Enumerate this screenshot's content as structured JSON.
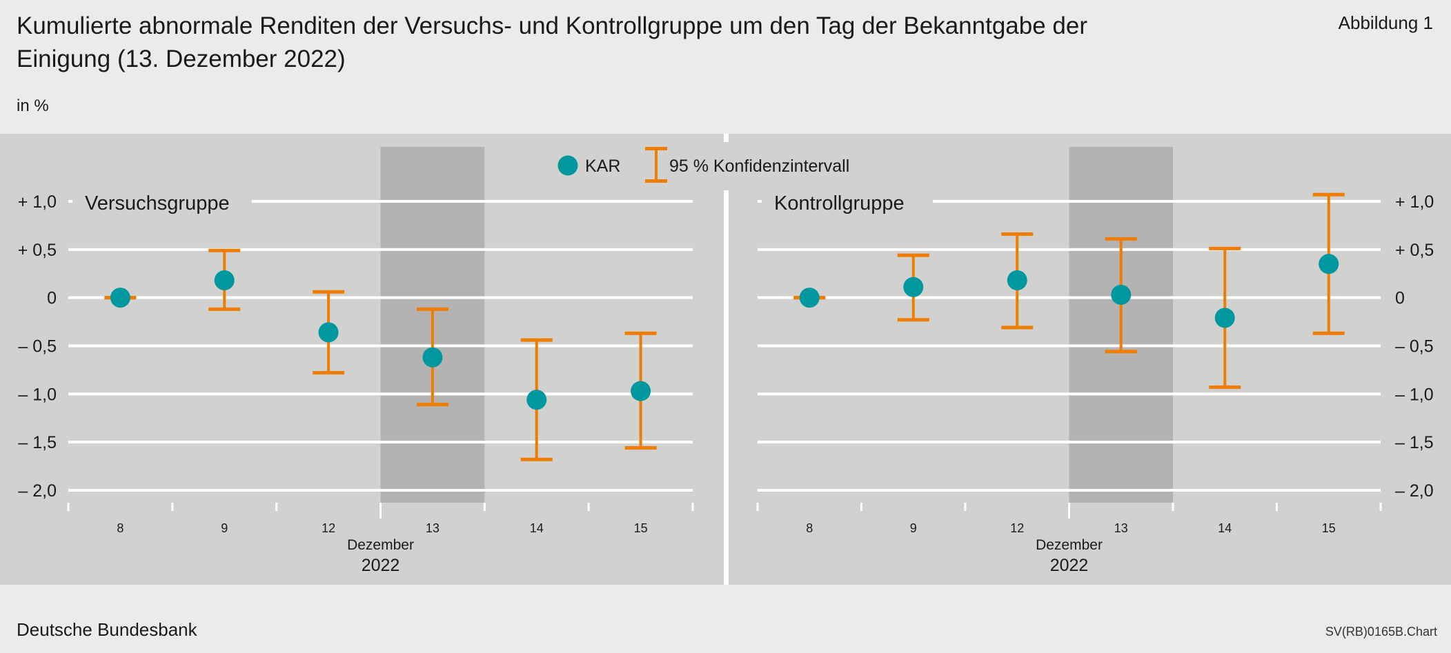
{
  "header": {
    "title": "Kumulierte abnormale Renditen der Versuchs- und Kontrollgruppe um den Tag der Bekanntgabe der Einigung (13. Dezember 2022)",
    "figure_label": "Abbildung 1",
    "unit": "in %"
  },
  "footer": {
    "source": "Deutsche Bundesbank",
    "code": "SV(RB)0165B.Chart"
  },
  "legend": {
    "dot_label": "KAR",
    "ci_label": "95 % Konfidenzintervall"
  },
  "colors": {
    "dot": "#00979f",
    "ci": "#ef7d00",
    "panel": "#d1d1cf",
    "highlight_band": "#b4b3b1",
    "grid": "#ffffff"
  },
  "chart_data": [
    {
      "type": "scatter",
      "title": "Versuchsgruppe",
      "categories": [
        "8",
        "9",
        "12",
        "13",
        "14",
        "15"
      ],
      "x_month_label": "Dezember",
      "x_year_label": "2022",
      "highlight_category": "13",
      "ylim": [
        -2.0,
        1.0
      ],
      "y_ticks": [
        1.0,
        0.5,
        0,
        -0.5,
        -1.0,
        -1.5,
        -2.0
      ],
      "y_tick_labels": [
        "+ 1,0",
        "+ 0,5",
        "0",
        "– 0,5",
        "– 1,0",
        "– 1,5",
        "– 2,0"
      ],
      "y_axis_side": "left",
      "grid": true,
      "series": [
        {
          "name": "KAR",
          "values": [
            0,
            0.18,
            -0.36,
            -0.62,
            -1.06,
            -0.97
          ]
        },
        {
          "name": "95 % Konfidenzintervall",
          "low": [
            0,
            -0.12,
            -0.78,
            -1.11,
            -1.68,
            -1.56
          ],
          "high": [
            0,
            0.49,
            0.06,
            -0.12,
            -0.44,
            -0.37
          ]
        }
      ]
    },
    {
      "type": "scatter",
      "title": "Kontrollgruppe",
      "categories": [
        "8",
        "9",
        "12",
        "13",
        "14",
        "15"
      ],
      "x_month_label": "Dezember",
      "x_year_label": "2022",
      "highlight_category": "13",
      "ylim": [
        -2.0,
        1.0
      ],
      "y_ticks": [
        1.0,
        0.5,
        0,
        -0.5,
        -1.0,
        -1.5,
        -2.0
      ],
      "y_tick_labels": [
        "+ 1,0",
        "+ 0,5",
        "0",
        "– 0,5",
        "– 1,0",
        "– 1,5",
        "– 2,0"
      ],
      "y_axis_side": "right",
      "grid": true,
      "series": [
        {
          "name": "KAR",
          "values": [
            0,
            0.11,
            0.18,
            0.03,
            -0.21,
            0.35
          ]
        },
        {
          "name": "95 % Konfidenzintervall",
          "low": [
            0,
            -0.23,
            -0.31,
            -0.56,
            -0.93,
            -0.37
          ],
          "high": [
            0,
            0.44,
            0.66,
            0.61,
            0.51,
            1.07
          ]
        }
      ]
    }
  ]
}
